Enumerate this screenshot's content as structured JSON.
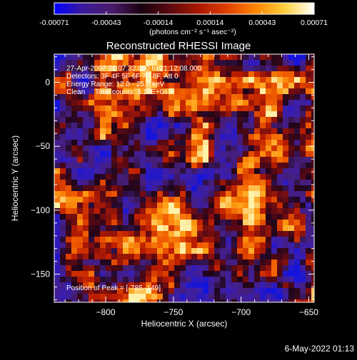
{
  "colorbar": {
    "ticks": [
      "-0.00071",
      "-0.00043",
      "-0.00014",
      "0.00014",
      "0.00043",
      "0.00071"
    ],
    "units": "(photons cm⁻² s⁻¹ asec⁻²)",
    "stops": [
      "#0000ff",
      "#3a1a9a",
      "#4a1a6a",
      "#1a0010",
      "#5a0a10",
      "#aa1800",
      "#e04000",
      "#ff8800",
      "#ffd040",
      "#ffffff"
    ]
  },
  "chart_data": {
    "type": "heatmap",
    "title": "Reconstructed RHESSI Image",
    "xlabel": "Heliocentric X (arcsec)",
    "ylabel": "Heliocentric Y (arcsec)",
    "xlim": [
      -838,
      -646
    ],
    "ylim": [
      -172,
      22
    ],
    "xticks": [
      -800,
      -750,
      -700,
      -650
    ],
    "yticks": [
      0,
      -50,
      -100,
      -150
    ],
    "value_range": [
      -0.00071,
      0.00071
    ],
    "annotations": [
      "27-Apr-2007 21:07:32.000 to 21:12:08.000",
      "Detectors: 3F 4F 5F 6F 7F 8F, Att 0",
      "Energy Range: 12.0 - 25.0 keV",
      "Clean     Total counts: 3.17E+04"
    ],
    "peak_label": "Position of Peak = [-785,-149]",
    "peak": [
      -785,
      -149
    ]
  },
  "footer": {
    "date": "6-May-2022 01:13"
  }
}
